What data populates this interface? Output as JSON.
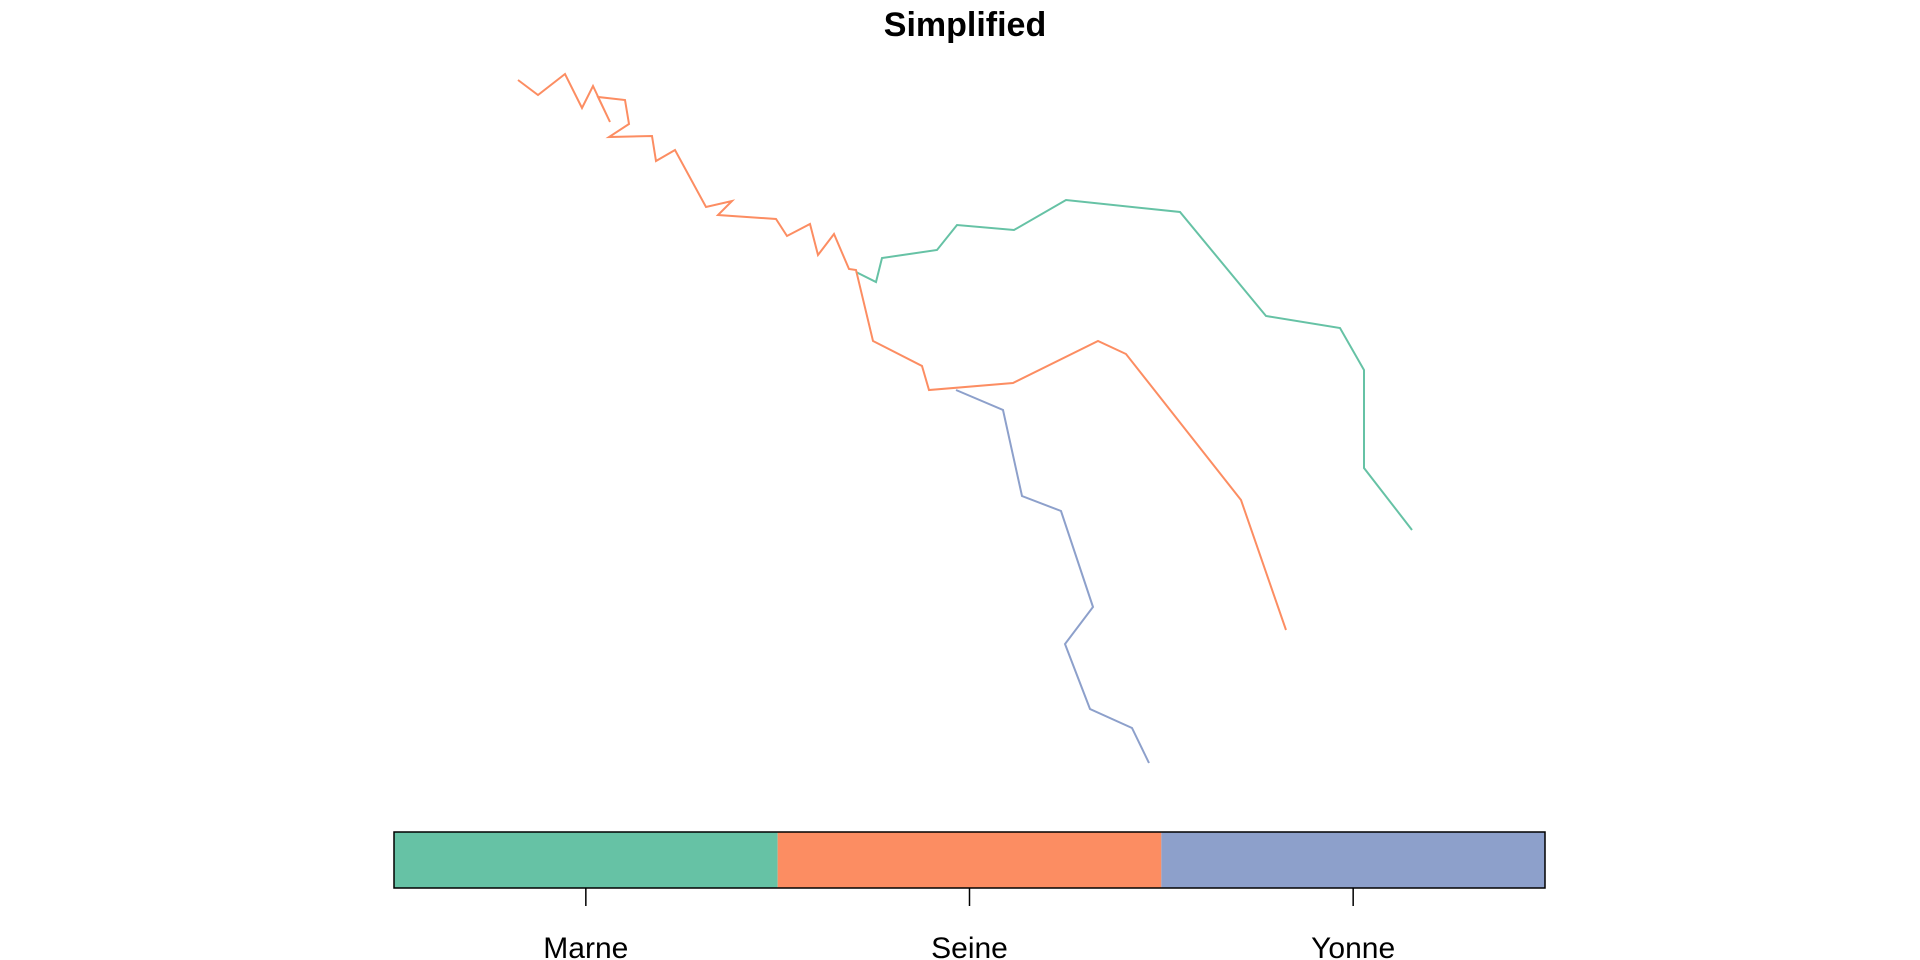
{
  "title": "Simplified",
  "rivers": [
    {
      "name": "Marne",
      "color": "#66C2A5",
      "path": [
        [
          856,
          272
        ],
        [
          876,
          282
        ],
        [
          882,
          258
        ],
        [
          937,
          250
        ],
        [
          957,
          225
        ],
        [
          1014,
          230
        ],
        [
          1066,
          200
        ],
        [
          1180,
          212
        ],
        [
          1266,
          316
        ],
        [
          1340,
          328
        ],
        [
          1364,
          370
        ],
        [
          1364,
          468
        ],
        [
          1412,
          530
        ]
      ]
    },
    {
      "name": "Seine",
      "color": "#FC8D62",
      "path": [
        [
          518,
          80
        ],
        [
          538,
          95
        ],
        [
          565,
          74
        ],
        [
          582,
          108
        ],
        [
          593,
          86
        ],
        [
          610,
          122
        ],
        [
          598,
          97
        ],
        [
          625,
          100
        ],
        [
          629,
          124
        ],
        [
          609,
          137
        ],
        [
          652,
          136
        ],
        [
          656,
          161
        ],
        [
          675,
          150
        ],
        [
          706,
          207
        ],
        [
          732,
          201
        ],
        [
          718,
          215
        ],
        [
          776,
          219
        ],
        [
          787,
          236
        ],
        [
          810,
          224
        ],
        [
          818,
          255
        ],
        [
          834,
          234
        ],
        [
          849,
          269
        ],
        [
          856,
          270
        ],
        [
          873,
          341
        ],
        [
          922,
          366
        ],
        [
          929,
          390
        ],
        [
          1013,
          383
        ],
        [
          1098,
          341
        ],
        [
          1126,
          354
        ],
        [
          1241,
          500
        ],
        [
          1286,
          630
        ]
      ]
    },
    {
      "name": "Yonne",
      "color": "#8DA0CB",
      "path": [
        [
          956,
          390
        ],
        [
          1003,
          410
        ],
        [
          1022,
          496
        ],
        [
          1061,
          511
        ],
        [
          1093,
          607
        ],
        [
          1065,
          644
        ],
        [
          1090,
          709
        ],
        [
          1132,
          728
        ],
        [
          1149,
          763
        ]
      ]
    }
  ],
  "legend": {
    "items": [
      {
        "label": "Marne",
        "color": "#66C2A5"
      },
      {
        "label": "Seine",
        "color": "#FC8D62"
      },
      {
        "label": "Yonne",
        "color": "#8DA0CB"
      }
    ]
  }
}
